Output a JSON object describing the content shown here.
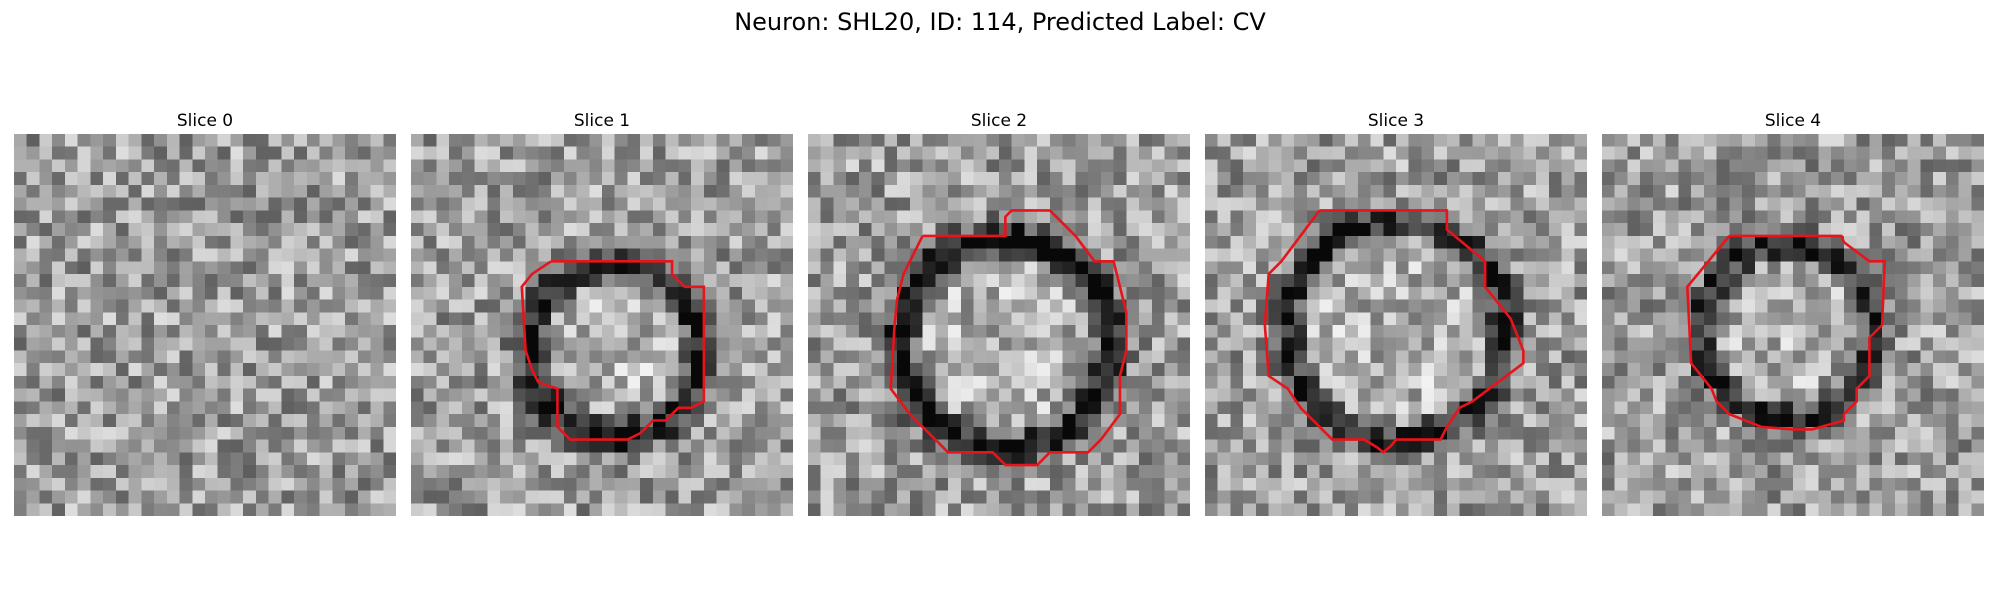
{
  "figure": {
    "title": "Neuron: SHL20, ID: 114, Predicted Label: CV",
    "contour_color": "#e8141b",
    "grid_size": 30,
    "panels": [
      {
        "title": "Slice 0",
        "contour": [],
        "ring": null
      },
      {
        "title": "Slice 1",
        "contour": [
          [
            11,
            10
          ],
          [
            20.5,
            10
          ],
          [
            20.5,
            11
          ],
          [
            21.5,
            12
          ],
          [
            23,
            12
          ],
          [
            23,
            21
          ],
          [
            22,
            21.5
          ],
          [
            21,
            21.5
          ],
          [
            20,
            22.5
          ],
          [
            19,
            22.5
          ],
          [
            18,
            23.5
          ],
          [
            17,
            24
          ],
          [
            12.5,
            24
          ],
          [
            11.5,
            23
          ],
          [
            11.5,
            20
          ],
          [
            10,
            19.5
          ],
          [
            9.5,
            18.5
          ],
          [
            9,
            17
          ],
          [
            8.7,
            12
          ],
          [
            9.5,
            11
          ]
        ],
        "ring": {
          "cx": 16,
          "cy": 17,
          "r": 6.8,
          "w": 2.6,
          "depth": 0.55
        }
      },
      {
        "title": "Slice 2",
        "contour": [
          [
            9,
            8
          ],
          [
            15.5,
            8
          ],
          [
            15.5,
            6.5
          ],
          [
            16,
            6
          ],
          [
            19,
            6
          ],
          [
            21,
            8
          ],
          [
            22.5,
            10
          ],
          [
            24,
            10
          ],
          [
            24.5,
            12
          ],
          [
            25,
            14
          ],
          [
            25,
            17
          ],
          [
            24.5,
            19
          ],
          [
            24.5,
            22
          ],
          [
            23,
            24
          ],
          [
            22,
            25
          ],
          [
            19,
            25
          ],
          [
            18,
            26
          ],
          [
            15.5,
            26
          ],
          [
            15,
            25.5
          ],
          [
            14.5,
            25
          ],
          [
            11,
            25
          ],
          [
            8,
            22
          ],
          [
            6.5,
            20
          ],
          [
            6.8,
            15
          ],
          [
            7,
            13
          ],
          [
            7.5,
            11
          ],
          [
            8,
            10
          ]
        ],
        "ring": {
          "cx": 15.5,
          "cy": 16.5,
          "r": 8.3,
          "w": 2.6,
          "depth": 0.6
        }
      },
      {
        "title": "Slice 3",
        "contour": [
          [
            9,
            6
          ],
          [
            19,
            6
          ],
          [
            19,
            7.5
          ],
          [
            22,
            10
          ],
          [
            22,
            12
          ],
          [
            24,
            14.5
          ],
          [
            25,
            17
          ],
          [
            25,
            18
          ],
          [
            21,
            21
          ],
          [
            20,
            21.5
          ],
          [
            19,
            23
          ],
          [
            18.5,
            24
          ],
          [
            15,
            24
          ],
          [
            14.6,
            24.5
          ],
          [
            14,
            25
          ],
          [
            13.5,
            24.6
          ],
          [
            12.5,
            24
          ],
          [
            10,
            24
          ],
          [
            7.5,
            21.5
          ],
          [
            6.5,
            20
          ],
          [
            5,
            19
          ],
          [
            4.7,
            15
          ],
          [
            5,
            11
          ],
          [
            6,
            10
          ]
        ],
        "ring": {
          "cx": 15,
          "cy": 15.5,
          "r": 8.6,
          "w": 2.4,
          "depth": 0.5
        }
      },
      {
        "title": "Slice 4",
        "contour": [
          [
            10,
            8
          ],
          [
            18.8,
            8
          ],
          [
            19,
            8.5
          ],
          [
            21,
            10
          ],
          [
            22.2,
            10
          ],
          [
            22,
            15
          ],
          [
            21,
            16
          ],
          [
            21,
            19
          ],
          [
            20,
            20
          ],
          [
            20,
            21
          ],
          [
            19,
            22
          ],
          [
            19,
            22.5
          ],
          [
            16.5,
            23.2
          ],
          [
            15,
            23.2
          ],
          [
            12.5,
            23
          ],
          [
            10,
            22
          ],
          [
            9,
            21
          ],
          [
            8.6,
            20
          ],
          [
            7,
            18
          ],
          [
            6.7,
            12
          ]
        ],
        "ring": {
          "cx": 14.5,
          "cy": 15.5,
          "r": 6.8,
          "w": 2.4,
          "depth": 0.45
        }
      }
    ]
  }
}
